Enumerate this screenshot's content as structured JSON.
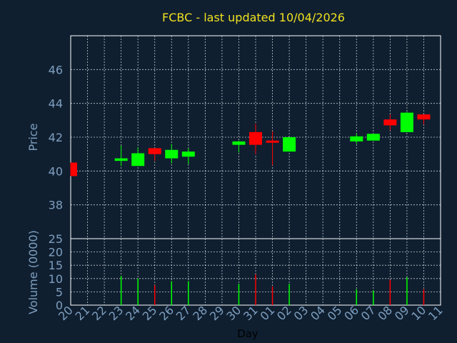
{
  "colors": {
    "background": "#0f1f30",
    "title": "#f0e020",
    "axis_text": "#7f9fbf",
    "frame": "#ffffff",
    "grid": "#ffffff",
    "up": "#00ff00",
    "down": "#ff0000",
    "day_label": "#000000"
  },
  "chart_data": [
    {
      "type": "candlestick",
      "title": "FCBC - last updated 10/04/2026",
      "ylabel": "Price",
      "ylim": [
        36.0,
        48.0
      ],
      "yticks": [
        38,
        40,
        42,
        44,
        46
      ],
      "grid": true,
      "categories": [
        "20",
        "21",
        "22",
        "23",
        "24",
        "25",
        "26",
        "27",
        "28",
        "29",
        "30",
        "31",
        "01",
        "02",
        "03",
        "04",
        "05",
        "06",
        "07",
        "08",
        "09",
        "10",
        "11"
      ],
      "candles": [
        {
          "day": "20",
          "open": 40.5,
          "high": 40.5,
          "low": 39.7,
          "close": 39.7
        },
        {
          "day": "23",
          "open": 40.6,
          "high": 41.5,
          "low": 40.3,
          "close": 40.75
        },
        {
          "day": "24",
          "open": 40.3,
          "high": 41.4,
          "low": 40.3,
          "close": 41.05
        },
        {
          "day": "25",
          "open": 41.35,
          "high": 41.35,
          "low": 40.6,
          "close": 41.0
        },
        {
          "day": "26",
          "open": 40.75,
          "high": 41.6,
          "low": 40.45,
          "close": 41.25
        },
        {
          "day": "27",
          "open": 40.85,
          "high": 41.35,
          "low": 40.4,
          "close": 41.15
        },
        {
          "day": "30",
          "open": 41.55,
          "high": 41.8,
          "low": 41.1,
          "close": 41.75
        },
        {
          "day": "31",
          "open": 42.3,
          "high": 42.8,
          "low": 41.0,
          "close": 41.55
        },
        {
          "day": "01",
          "open": 41.8,
          "high": 42.35,
          "low": 40.35,
          "close": 41.75
        },
        {
          "day": "02",
          "open": 41.15,
          "high": 42.0,
          "low": 41.15,
          "close": 42.0
        },
        {
          "day": "06",
          "open": 41.75,
          "high": 42.2,
          "low": 41.6,
          "close": 42.05
        },
        {
          "day": "07",
          "open": 41.8,
          "high": 42.2,
          "low": 41.8,
          "close": 42.2
        },
        {
          "day": "08",
          "open": 43.05,
          "high": 43.35,
          "low": 42.4,
          "close": 42.7
        },
        {
          "day": "09",
          "open": 42.3,
          "high": 43.5,
          "low": 42.3,
          "close": 43.45
        },
        {
          "day": "10",
          "open": 43.35,
          "high": 43.35,
          "low": 42.75,
          "close": 43.05
        }
      ]
    },
    {
      "type": "bar",
      "ylabel": "Volume (0000)",
      "xlabel": "Day",
      "ylim": [
        0,
        25
      ],
      "yticks": [
        0,
        5,
        10,
        15,
        20,
        25
      ],
      "grid": true,
      "categories": [
        "20",
        "21",
        "22",
        "23",
        "24",
        "25",
        "26",
        "27",
        "28",
        "29",
        "30",
        "31",
        "01",
        "02",
        "03",
        "04",
        "05",
        "06",
        "07",
        "08",
        "09",
        "10",
        "11"
      ],
      "bars": [
        {
          "day": "23",
          "value": 11,
          "direction": "up"
        },
        {
          "day": "24",
          "value": 10,
          "direction": "up"
        },
        {
          "day": "25",
          "value": 7.5,
          "direction": "down"
        },
        {
          "day": "26",
          "value": 9,
          "direction": "up"
        },
        {
          "day": "27",
          "value": 9,
          "direction": "up"
        },
        {
          "day": "30",
          "value": 8,
          "direction": "up"
        },
        {
          "day": "31",
          "value": 11.5,
          "direction": "down"
        },
        {
          "day": "01",
          "value": 7,
          "direction": "down"
        },
        {
          "day": "02",
          "value": 8,
          "direction": "up"
        },
        {
          "day": "06",
          "value": 6,
          "direction": "up"
        },
        {
          "day": "07",
          "value": 5.5,
          "direction": "up"
        },
        {
          "day": "08",
          "value": 9.5,
          "direction": "down"
        },
        {
          "day": "09",
          "value": 10.5,
          "direction": "up"
        },
        {
          "day": "10",
          "value": 6,
          "direction": "down"
        }
      ]
    }
  ]
}
